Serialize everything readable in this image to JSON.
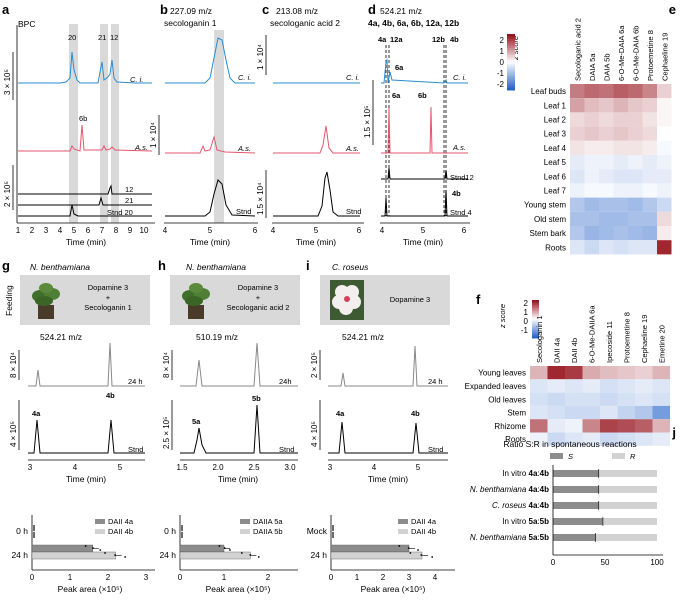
{
  "panels": {
    "a": {
      "label": "a",
      "title": "BPC",
      "scale_top": "3 × 10⁵",
      "scale_bottom": "2 × 10⁵",
      "peaks": [
        "20",
        "21",
        "12"
      ],
      "peak_6b": "6b",
      "trace_ci": "C. i.",
      "trace_as": "A.s.",
      "stnd": [
        "12",
        "21",
        "Stnd 20"
      ],
      "xlabel": "Time (min)",
      "xticks": [
        "1",
        "2",
        "3",
        "4",
        "5",
        "6",
        "7",
        "8",
        "9",
        "10"
      ]
    },
    "b": {
      "label": "b",
      "mz": "227.09 m/z",
      "compound": "secologanin 1",
      "scale_top": "1 × 10⁴",
      "trace_ci": "C. i.",
      "trace_as": "A.s.",
      "stnd": "Stnd",
      "xlabel": "Time (min)",
      "xticks": [
        "4",
        "5",
        "6"
      ]
    },
    "c": {
      "label": "c",
      "mz": "213.08 m/z",
      "compound": "secologanic acid 2",
      "scale_top": "1 × 10⁴",
      "scale_bottom": "1.5 × 10⁴",
      "trace_ci": "C. i.",
      "trace_as": "A.s.",
      "stnd": "Stnd",
      "xlabel": "Time (min)",
      "xticks": [
        "4",
        "5",
        "6"
      ]
    },
    "d": {
      "label": "d",
      "mz": "524.21 m/z",
      "compounds": "4a, 4b, 6a, 6b, 12a, 12b",
      "scale": "1.5 × 10⁵",
      "peaks_top": [
        "4a",
        "12a",
        "12b",
        "4b"
      ],
      "peak_6a": "6a",
      "peak_6a2": "6a",
      "peak_6b": "6b",
      "trace_ci": "C. i.",
      "trace_as": "A.s.",
      "stnd12": "Stnd12",
      "label4b": "4b",
      "stnd4": "Stnd 4",
      "xlabel": "Time (min)",
      "xticks": [
        "4",
        "5",
        "6"
      ]
    },
    "e": {
      "label": "e",
      "zlabel": "z score",
      "cbar_ticks": [
        "2",
        "1",
        "0",
        "-1",
        "-2"
      ],
      "columns": [
        "Secologanic acid 2",
        "DAIA 5a",
        "DAIA 5b",
        "6-O-Me-DAIA 6a",
        "6-O-Me-DAIA 6b",
        "Protoemetine 8",
        "Cephaeline 19"
      ],
      "rows": [
        "Leaf buds",
        "Leaf 1",
        "Leaf 2",
        "Leaf 3",
        "Leaf 4",
        "Leaf 5",
        "Leaf 6",
        "Leaf 7",
        "Young stem",
        "Old stem",
        "Stem bark",
        "Roots"
      ],
      "values": [
        [
          1.4,
          1.6,
          1.5,
          1.7,
          1.6,
          1.3,
          0.5
        ],
        [
          1.0,
          0.7,
          0.6,
          0.8,
          0.6,
          0.5,
          0.1
        ],
        [
          0.4,
          0.5,
          0.4,
          0.5,
          0.5,
          0.3,
          0.1
        ],
        [
          0.5,
          0.6,
          0.5,
          0.6,
          0.5,
          0.4,
          0.0
        ],
        [
          0.3,
          0.2,
          0.2,
          0.3,
          0.3,
          0.2,
          -0.1
        ],
        [
          -0.3,
          -0.2,
          -0.2,
          -0.3,
          -0.2,
          -0.3,
          -0.2
        ],
        [
          -0.4,
          -0.2,
          -0.3,
          -0.4,
          -0.4,
          -0.3,
          -0.3
        ],
        [
          -0.2,
          -0.1,
          -0.1,
          -0.2,
          -0.2,
          -0.1,
          -0.2
        ],
        [
          -0.9,
          -1.1,
          -1.0,
          -1.0,
          -1.1,
          -0.9,
          -0.6
        ],
        [
          -1.0,
          -1.0,
          -1.1,
          -1.1,
          -1.0,
          -1.0,
          0.4
        ],
        [
          -0.9,
          -1.2,
          -1.1,
          -1.0,
          -1.1,
          -1.2,
          0.2
        ],
        [
          -0.4,
          -0.6,
          -0.4,
          -0.5,
          -0.4,
          -0.4,
          2.3
        ]
      ]
    },
    "f": {
      "label": "f",
      "zlabel": "z score",
      "cbar_ticks": [
        "2",
        "1",
        "0",
        "-1"
      ],
      "columns": [
        "Secologanin 1",
        "DAII 4a",
        "DAII 4b",
        "6-O-Me-DAIIA 6a",
        "Ipecoside 11",
        "Protoemetine 8",
        "Cephaeline 19",
        "Emetine 20"
      ],
      "rows": [
        "Young leaves",
        "Expanded leaves",
        "Old leaves",
        "Stem",
        "Rhizome",
        "Roots"
      ],
      "values": [
        [
          0.8,
          2.3,
          2.1,
          0.9,
          0.7,
          0.6,
          0.5,
          0.8
        ],
        [
          -0.4,
          -0.3,
          -0.4,
          -0.3,
          -0.5,
          -0.4,
          -0.3,
          -0.4
        ],
        [
          -0.5,
          -0.6,
          -0.5,
          -0.5,
          -0.6,
          -0.5,
          -0.4,
          -0.5
        ],
        [
          -0.4,
          -0.5,
          -0.6,
          -0.6,
          -0.4,
          -0.7,
          -0.9,
          -1.6
        ],
        [
          1.5,
          -0.3,
          -0.2,
          1.3,
          2.0,
          1.9,
          1.7,
          0.8
        ],
        [
          -0.2,
          -0.6,
          -0.4,
          -0.3,
          -0.6,
          -0.5,
          -0.4,
          -0.3
        ]
      ]
    },
    "g": {
      "label": "g",
      "species": "N. benthamiana",
      "feeding": "Feeding",
      "text1": "Dopamine 3",
      "plus": "+",
      "text2": "Secologanin 1",
      "mz": "524.21 m/z",
      "scale_top": "8 × 10⁴",
      "scale_bottom": "4 × 10⁵",
      "time_label": "24 h",
      "stnd": "Stnd",
      "peak_a": "4a",
      "peak_b": "4b",
      "xlabel": "Time (min)",
      "xticks": [
        "3",
        "4",
        "5"
      ],
      "bar_ylabels": [
        "0 h",
        "24 h"
      ],
      "legend": [
        "DAII 4a",
        "DAII 4b"
      ],
      "bar_xlabel": "Peak area (×10⁵)",
      "bar_xticks": [
        "0",
        "1",
        "2",
        "3"
      ]
    },
    "h": {
      "label": "h",
      "species": "N. benthamiana",
      "text1": "Dopamine 3",
      "plus": "+",
      "text2": "Secologanic acid 2",
      "mz": "510.19 m/z",
      "scale_top": "8 × 10⁴",
      "scale_bottom": "2.5 × 10⁵",
      "time_label": "24h",
      "stnd": "Stnd",
      "peak_a": "5a",
      "peak_b": "5b",
      "xlabel": "Time (min)",
      "xticks": [
        "1.5",
        "2.0",
        "2.5",
        "3.0"
      ],
      "bar_ylabels": [
        "0 h",
        "24 h"
      ],
      "legend": [
        "DAIIA 5a",
        "DAIIA 5b"
      ],
      "bar_xlabel": "Peak area (×10⁵)",
      "bar_xticks": [
        "0",
        "1",
        "2"
      ]
    },
    "i": {
      "label": "i",
      "species": "C. roseus",
      "text1": "Dopamine 3",
      "mz": "524.21 m/z",
      "scale_top": "2 × 10⁵",
      "scale_bottom": "4 × 10⁵",
      "time_label": "24 h",
      "stnd": "Stnd",
      "peak_a": "4a",
      "peak_b": "4b",
      "xlabel": "Time (min)",
      "xticks": [
        "3",
        "4",
        "5"
      ],
      "bar_ylabels": [
        "Mock",
        "24 h"
      ],
      "legend": [
        "DAII 4a",
        "DAII 4b"
      ],
      "bar_xlabel": "Peak area (×10⁵)",
      "bar_xticks": [
        "0",
        "1",
        "2",
        "3",
        "4"
      ]
    },
    "j": {
      "label": "j",
      "title": "Ratio S:R in spontaneous reactions",
      "legend_s": "S",
      "legend_r": "R",
      "xticks": [
        "0",
        "50",
        "100"
      ]
    }
  },
  "chart_data": [
    {
      "type": "bar",
      "title": "g: Peak area",
      "categories": [
        "0 h",
        "24 h"
      ],
      "series": [
        {
          "name": "DAII 4a",
          "values": [
            0.0,
            1.6
          ]
        },
        {
          "name": "DAII 4b",
          "values": [
            0.0,
            2.2
          ]
        }
      ],
      "xlabel": "Peak area (×10⁵)",
      "xlim": [
        0,
        3
      ]
    },
    {
      "type": "bar",
      "title": "h: Peak area",
      "categories": [
        "0 h",
        "24 h"
      ],
      "series": [
        {
          "name": "DAIIA 5a",
          "values": [
            0.0,
            1.0
          ]
        },
        {
          "name": "DAIIA 5b",
          "values": [
            0.0,
            1.6
          ]
        }
      ],
      "xlabel": "Peak area (×10⁵)",
      "xlim": [
        0,
        2.5
      ]
    },
    {
      "type": "bar",
      "title": "i: Peak area",
      "categories": [
        "Mock",
        "24 h"
      ],
      "series": [
        {
          "name": "DAII 4a",
          "values": [
            0.0,
            3.0
          ]
        },
        {
          "name": "DAII 4b",
          "values": [
            0.0,
            3.5
          ]
        }
      ],
      "xlabel": "Peak area (×10⁵)",
      "xlim": [
        0,
        4.5
      ]
    },
    {
      "type": "bar",
      "title": "Ratio S:R in spontaneous reactions",
      "categories": [
        "In vitro 4a:4b",
        "N. benthamiana 4a:4b",
        "C. roseus 4a:4b",
        "In vitro 5a:5b",
        "N. benthamiana 5a:5b"
      ],
      "series": [
        {
          "name": "S",
          "values": [
            44,
            44,
            44,
            48,
            41
          ]
        },
        {
          "name": "R",
          "values": [
            56,
            56,
            56,
            52,
            59
          ]
        }
      ],
      "xlim": [
        0,
        100
      ]
    }
  ],
  "j_rows": [
    {
      "pre": "In vitro ",
      "a": "4a",
      "sep": ":",
      "b": "4b",
      "italic": false
    },
    {
      "pre": "N. benthamiana ",
      "a": "4a",
      "sep": ":",
      "b": "4b",
      "italic": true
    },
    {
      "pre": "C. roseus ",
      "a": "4a",
      "sep": ":",
      "b": "4b",
      "italic": true
    },
    {
      "pre": "In vitro ",
      "a": "5a",
      "sep": ":",
      "b": "5b",
      "italic": false
    },
    {
      "pre": "N. benthamiana ",
      "a": "5a",
      "sep": ":",
      "b": "5b",
      "italic": true
    }
  ],
  "colors": {
    "ci": "#2a8ccf",
    "as": "#e4566c",
    "stnd": "#000000",
    "bar_a": "#8c8c8c",
    "bar_b": "#d2d2d2",
    "highlight": "#d9d9d9"
  }
}
